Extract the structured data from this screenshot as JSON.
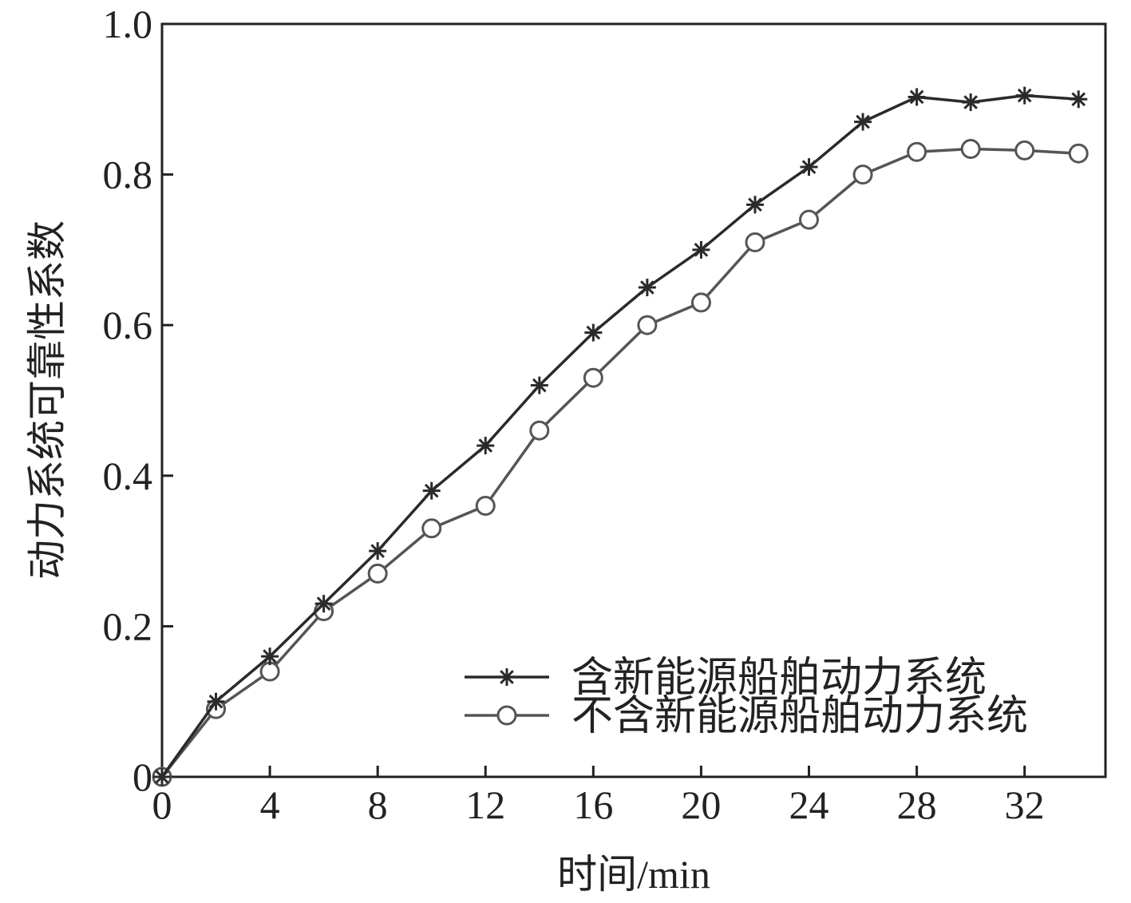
{
  "chart_data": {
    "type": "line",
    "xlabel": "时间/min",
    "ylabel": "动力系统可靠性系数",
    "xlim": [
      0,
      35
    ],
    "ylim": [
      0,
      1.0
    ],
    "xticks": [
      0,
      4,
      8,
      12,
      16,
      20,
      24,
      28,
      32
    ],
    "yticks": [
      0,
      0.2,
      0.4,
      0.6,
      0.8,
      1.0
    ],
    "ytick_labels": [
      "0",
      "0.2",
      "0.4",
      "0.6",
      "0.8",
      "1.0"
    ],
    "grid": false,
    "legend_position": "bottom-right",
    "x": [
      0,
      2,
      4,
      6,
      8,
      10,
      12,
      14,
      16,
      18,
      20,
      22,
      24,
      26,
      28,
      30,
      32,
      34
    ],
    "series": [
      {
        "name": "含新能源船舶动力系统",
        "marker": "asterisk",
        "color": "#2a2a2a",
        "values": [
          0,
          0.1,
          0.16,
          0.23,
          0.3,
          0.38,
          0.44,
          0.52,
          0.59,
          0.65,
          0.7,
          0.76,
          0.81,
          0.87,
          0.903,
          0.896,
          0.905,
          0.9
        ]
      },
      {
        "name": "不含新能源船舶动力系统",
        "marker": "circle",
        "color": "#555555",
        "values": [
          0,
          0.09,
          0.14,
          0.22,
          0.27,
          0.33,
          0.36,
          0.46,
          0.53,
          0.6,
          0.63,
          0.71,
          0.74,
          0.8,
          0.83,
          0.834,
          0.832,
          0.828
        ]
      }
    ]
  }
}
